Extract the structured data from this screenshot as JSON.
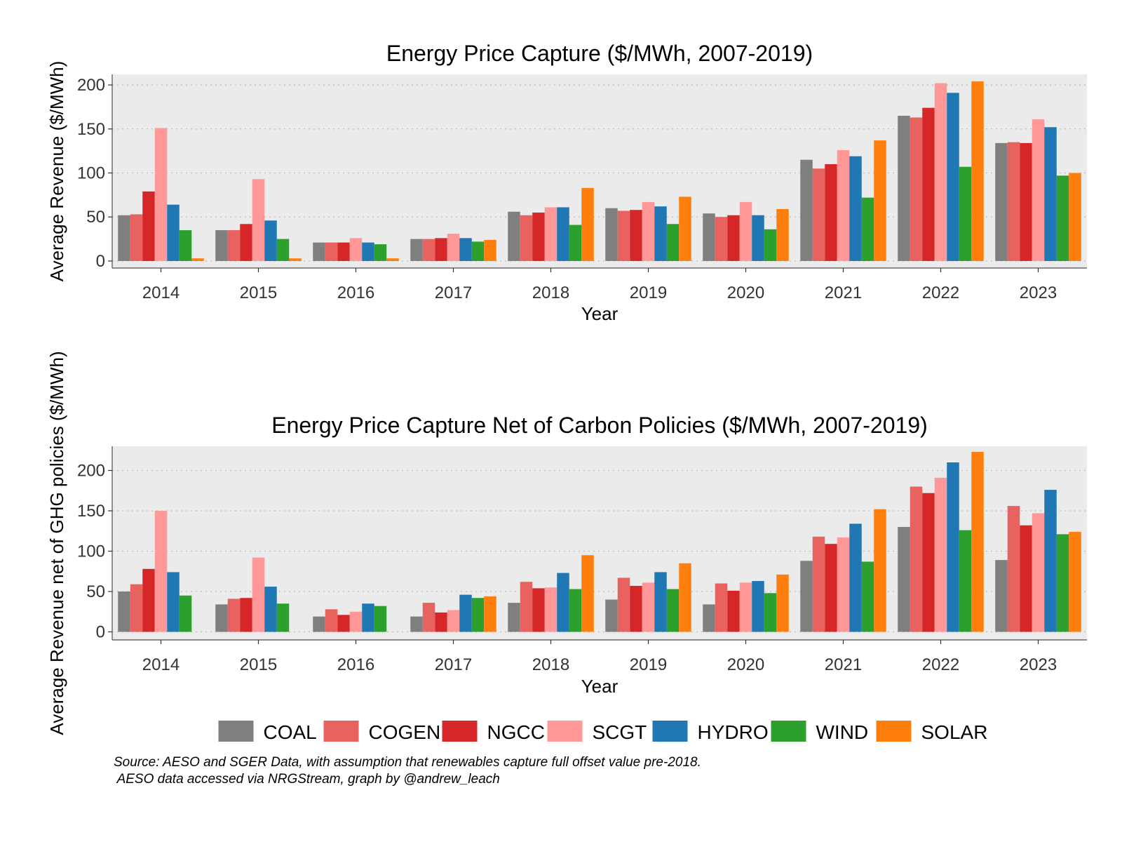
{
  "series_colors": {
    "COAL": "#7f7f7f",
    "COGEN": "#e8625f",
    "NGCC": "#d62728",
    "SCGT": "#ff9896",
    "HYDRO": "#1f77b4",
    "WIND": "#2ca02c",
    "SOLAR": "#ff7f0e"
  },
  "legend": [
    "COAL",
    "COGEN",
    "NGCC",
    "SCGT",
    "HYDRO",
    "WIND",
    "SOLAR"
  ],
  "source_note": [
    "Source: AESO and SGER Data, with assumption that renewables capture full offset value pre-2018.",
    " AESO data accessed via NRGStream, graph by @andrew_leach"
  ],
  "chart_data": [
    {
      "type": "bar",
      "title": "Energy Price Capture ($/MWh, 2007-2019)",
      "xlabel": "Year",
      "ylabel": "Average Revenue ($/MWh)",
      "ylim": [
        -8,
        212
      ],
      "yticks": [
        0,
        50,
        100,
        150,
        200
      ],
      "grid": true,
      "categories": [
        "2014",
        "2015",
        "2016",
        "2017",
        "2018",
        "2019",
        "2020",
        "2021",
        "2022",
        "2023"
      ],
      "series": [
        {
          "name": "COAL",
          "values": [
            52,
            35,
            21,
            25,
            56,
            60,
            54,
            115,
            165,
            134
          ]
        },
        {
          "name": "COGEN",
          "values": [
            53,
            35,
            21,
            25,
            52,
            57,
            50,
            105,
            163,
            135
          ]
        },
        {
          "name": "NGCC",
          "values": [
            79,
            42,
            21,
            26,
            55,
            58,
            52,
            110,
            174,
            134
          ]
        },
        {
          "name": "SCGT",
          "values": [
            151,
            93,
            26,
            31,
            61,
            67,
            67,
            126,
            202,
            161
          ]
        },
        {
          "name": "HYDRO",
          "values": [
            64,
            46,
            21,
            26,
            61,
            62,
            52,
            119,
            191,
            152
          ]
        },
        {
          "name": "WIND",
          "values": [
            35,
            25,
            19,
            22,
            41,
            42,
            36,
            72,
            107,
            97
          ]
        },
        {
          "name": "SOLAR",
          "values": [
            3,
            3,
            3,
            24,
            83,
            73,
            59,
            137,
            204,
            100
          ]
        }
      ]
    },
    {
      "type": "bar",
      "title": "Energy Price Capture Net of Carbon Policies ($/MWh, 2007-2019)",
      "xlabel": "Year",
      "ylabel": "Average Revenue net of GHG policies ($/MWh)",
      "ylim": [
        -10,
        230
      ],
      "yticks": [
        0,
        50,
        100,
        150,
        200
      ],
      "grid": true,
      "categories": [
        "2014",
        "2015",
        "2016",
        "2017",
        "2018",
        "2019",
        "2020",
        "2021",
        "2022",
        "2023"
      ],
      "series": [
        {
          "name": "COAL",
          "values": [
            50,
            34,
            19,
            19,
            36,
            40,
            34,
            88,
            130,
            89
          ]
        },
        {
          "name": "COGEN",
          "values": [
            59,
            41,
            28,
            36,
            62,
            67,
            60,
            118,
            180,
            156
          ]
        },
        {
          "name": "NGCC",
          "values": [
            78,
            42,
            21,
            24,
            54,
            57,
            51,
            109,
            172,
            132
          ]
        },
        {
          "name": "SCGT",
          "values": [
            150,
            92,
            25,
            27,
            55,
            61,
            61,
            117,
            191,
            147
          ]
        },
        {
          "name": "HYDRO",
          "values": [
            74,
            56,
            35,
            46,
            73,
            74,
            63,
            134,
            210,
            176
          ]
        },
        {
          "name": "WIND",
          "values": [
            45,
            35,
            32,
            42,
            53,
            53,
            48,
            87,
            126,
            121
          ]
        },
        {
          "name": "SOLAR",
          "values": [
            0,
            0,
            0,
            44,
            95,
            85,
            71,
            152,
            223,
            124
          ]
        }
      ]
    }
  ]
}
